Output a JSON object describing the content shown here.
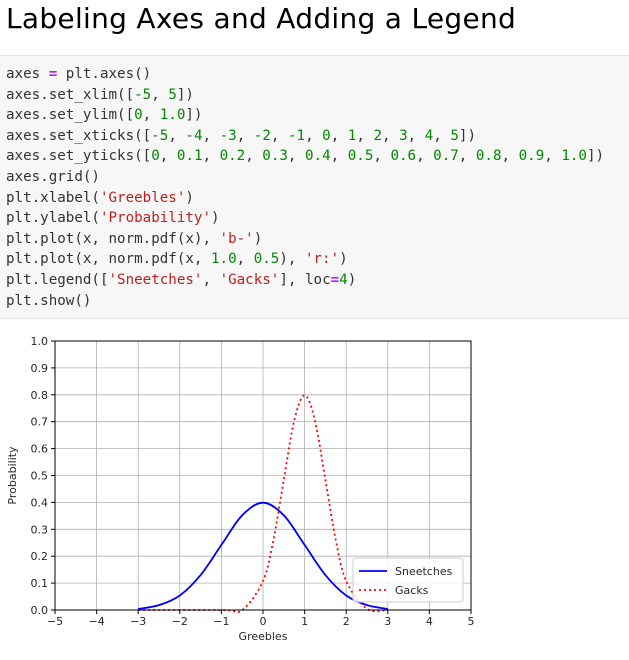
{
  "heading": "Labeling Axes and Adding a Legend",
  "code_lines": [
    [
      {
        "t": "axes ",
        "c": ""
      },
      {
        "t": "=",
        "c": "op"
      },
      {
        "t": " plt.axes()",
        "c": ""
      }
    ],
    [
      {
        "t": "axes.set_xlim([",
        "c": ""
      },
      {
        "t": "-5",
        "c": "num"
      },
      {
        "t": ", ",
        "c": ""
      },
      {
        "t": "5",
        "c": "num"
      },
      {
        "t": "])",
        "c": ""
      }
    ],
    [
      {
        "t": "axes.set_ylim([",
        "c": ""
      },
      {
        "t": "0",
        "c": "num"
      },
      {
        "t": ", ",
        "c": ""
      },
      {
        "t": "1.0",
        "c": "num"
      },
      {
        "t": "])",
        "c": ""
      }
    ],
    [
      {
        "t": "axes.set_xticks([",
        "c": ""
      },
      {
        "t": "-5",
        "c": "num"
      },
      {
        "t": ", ",
        "c": ""
      },
      {
        "t": "-4",
        "c": "num"
      },
      {
        "t": ", ",
        "c": ""
      },
      {
        "t": "-3",
        "c": "num"
      },
      {
        "t": ", ",
        "c": ""
      },
      {
        "t": "-2",
        "c": "num"
      },
      {
        "t": ", ",
        "c": ""
      },
      {
        "t": "-1",
        "c": "num"
      },
      {
        "t": ", ",
        "c": ""
      },
      {
        "t": "0",
        "c": "num"
      },
      {
        "t": ", ",
        "c": ""
      },
      {
        "t": "1",
        "c": "num"
      },
      {
        "t": ", ",
        "c": ""
      },
      {
        "t": "2",
        "c": "num"
      },
      {
        "t": ", ",
        "c": ""
      },
      {
        "t": "3",
        "c": "num"
      },
      {
        "t": ", ",
        "c": ""
      },
      {
        "t": "4",
        "c": "num"
      },
      {
        "t": ", ",
        "c": ""
      },
      {
        "t": "5",
        "c": "num"
      },
      {
        "t": "])",
        "c": ""
      }
    ],
    [
      {
        "t": "axes.set_yticks([",
        "c": ""
      },
      {
        "t": "0",
        "c": "num"
      },
      {
        "t": ", ",
        "c": ""
      },
      {
        "t": "0.1",
        "c": "num"
      },
      {
        "t": ", ",
        "c": ""
      },
      {
        "t": "0.2",
        "c": "num"
      },
      {
        "t": ", ",
        "c": ""
      },
      {
        "t": "0.3",
        "c": "num"
      },
      {
        "t": ", ",
        "c": ""
      },
      {
        "t": "0.4",
        "c": "num"
      },
      {
        "t": ", ",
        "c": ""
      },
      {
        "t": "0.5",
        "c": "num"
      },
      {
        "t": ", ",
        "c": ""
      },
      {
        "t": "0.6",
        "c": "num"
      },
      {
        "t": ", ",
        "c": ""
      },
      {
        "t": "0.7",
        "c": "num"
      },
      {
        "t": ", ",
        "c": ""
      },
      {
        "t": "0.8",
        "c": "num"
      },
      {
        "t": ", ",
        "c": ""
      },
      {
        "t": "0.9",
        "c": "num"
      },
      {
        "t": ", ",
        "c": ""
      },
      {
        "t": "1.0",
        "c": "num"
      },
      {
        "t": "])",
        "c": ""
      }
    ],
    [
      {
        "t": "axes.grid()",
        "c": ""
      }
    ],
    [
      {
        "t": "plt.xlabel(",
        "c": ""
      },
      {
        "t": "'Greebles'",
        "c": "str"
      },
      {
        "t": ")",
        "c": ""
      }
    ],
    [
      {
        "t": "plt.ylabel(",
        "c": ""
      },
      {
        "t": "'Probability'",
        "c": "str"
      },
      {
        "t": ")",
        "c": ""
      }
    ],
    [
      {
        "t": "plt.plot(x, norm.pdf(x), ",
        "c": ""
      },
      {
        "t": "'b-'",
        "c": "str"
      },
      {
        "t": ")",
        "c": ""
      }
    ],
    [
      {
        "t": "plt.plot(x, norm.pdf(x, ",
        "c": ""
      },
      {
        "t": "1.0",
        "c": "num"
      },
      {
        "t": ", ",
        "c": ""
      },
      {
        "t": "0.5",
        "c": "num"
      },
      {
        "t": "), ",
        "c": ""
      },
      {
        "t": "'r:'",
        "c": "str"
      },
      {
        "t": ")",
        "c": ""
      }
    ],
    [
      {
        "t": "plt.legend([",
        "c": ""
      },
      {
        "t": "'Sneetches'",
        "c": "str"
      },
      {
        "t": ", ",
        "c": ""
      },
      {
        "t": "'Gacks'",
        "c": "str"
      },
      {
        "t": "], loc",
        "c": ""
      },
      {
        "t": "=",
        "c": "op"
      },
      {
        "t": "4",
        "c": "num"
      },
      {
        "t": ")",
        "c": ""
      }
    ],
    [
      {
        "t": "plt.show()",
        "c": ""
      }
    ]
  ],
  "chart_data": {
    "type": "line",
    "title": "",
    "xlabel": "Greebles",
    "ylabel": "Probability",
    "xlim": [
      -5,
      5
    ],
    "ylim": [
      0,
      1.0
    ],
    "xticks": [
      "−5",
      "−4",
      "−3",
      "−2",
      "−1",
      "0",
      "1",
      "2",
      "3",
      "4",
      "5"
    ],
    "yticks": [
      "0.0",
      "0.1",
      "0.2",
      "0.3",
      "0.4",
      "0.5",
      "0.6",
      "0.7",
      "0.8",
      "0.9",
      "1.0"
    ],
    "grid": true,
    "legend_placement": "lower-right",
    "series": [
      {
        "name": "Sneetches",
        "color": "#0000ff",
        "style": "solid",
        "x": [
          -3,
          -2.5,
          -2,
          -1.5,
          -1,
          -0.5,
          0,
          0.5,
          1,
          1.5,
          2,
          2.5,
          3
        ],
        "y": [
          0.004,
          0.018,
          0.054,
          0.13,
          0.242,
          0.352,
          0.399,
          0.352,
          0.242,
          0.13,
          0.054,
          0.018,
          0.004
        ]
      },
      {
        "name": "Gacks",
        "color": "#ff0000",
        "style": "dotted",
        "x": [
          -3,
          -1,
          -0.5,
          0,
          0.25,
          0.5,
          0.75,
          1,
          1.25,
          1.5,
          1.75,
          2,
          2.5,
          3
        ],
        "y": [
          0.0,
          0.0,
          0.0,
          0.108,
          0.26,
          0.484,
          0.704,
          0.798,
          0.704,
          0.484,
          0.26,
          0.108,
          0.004,
          0.0
        ]
      }
    ]
  }
}
